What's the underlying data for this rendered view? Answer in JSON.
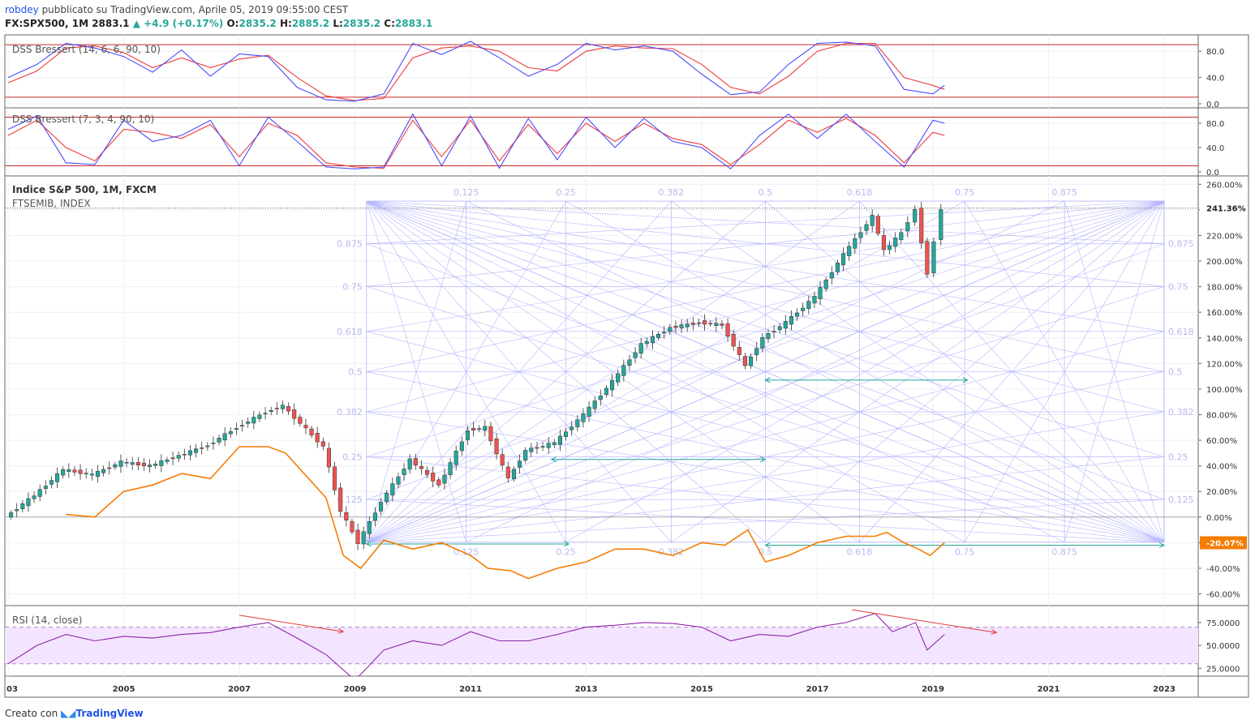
{
  "header": {
    "user": "robdey",
    "published": "pubblicato su TradingView.com, Aprile 05, 2019 09:55:00 CEST",
    "symbol": "FX:SPX500, 1M",
    "last": "2883.1",
    "change": "+4.9 (+0.17%)",
    "o_label": "O:",
    "o": "2835.2",
    "h_label": "H:",
    "h": "2885.2",
    "l_label": "L:",
    "l": "2835.2",
    "c_label": "C:",
    "c": "2883.1"
  },
  "footer": {
    "created": "Creato con",
    "brand": "TradingView"
  },
  "colors": {
    "up": "#26a69a",
    "down": "#ef5350",
    "compare": "#f57c00",
    "dss_fast": "#4b4bff",
    "dss_slow": "#ef3b3b",
    "rsi": "#8e24aa",
    "fib": "#7b7bff",
    "arrow": "#26a69a"
  },
  "chart_data": [
    {
      "type": "line",
      "title": "DSS Bressert (14, 6, 6, 90, 10)",
      "y_ticks": [
        "80.0",
        "40.0",
        "0.0"
      ],
      "levels": [
        90,
        10
      ],
      "ylim": [
        0,
        100
      ],
      "x": [
        2003.0,
        2003.5,
        2004.0,
        2004.5,
        2005.0,
        2005.5,
        2006.0,
        2006.5,
        2007.0,
        2007.5,
        2008.0,
        2008.5,
        2009.0,
        2009.5,
        2010.0,
        2010.5,
        2011.0,
        2011.5,
        2012.0,
        2012.5,
        2013.0,
        2013.5,
        2014.0,
        2014.5,
        2015.0,
        2015.5,
        2016.0,
        2016.5,
        2017.0,
        2017.5,
        2018.0,
        2018.5,
        2019.0,
        2019.2
      ],
      "series": [
        {
          "values": [
            40,
            60,
            92,
            85,
            72,
            48,
            82,
            42,
            76,
            72,
            25,
            6,
            4,
            15,
            92,
            75,
            95,
            70,
            42,
            60,
            92,
            82,
            88,
            80,
            45,
            14,
            18,
            60,
            92,
            94,
            88,
            22,
            15,
            28
          ]
        },
        {
          "values": [
            32,
            50,
            85,
            88,
            78,
            55,
            70,
            55,
            68,
            74,
            40,
            12,
            5,
            8,
            70,
            85,
            88,
            80,
            55,
            50,
            80,
            88,
            85,
            84,
            60,
            25,
            15,
            42,
            80,
            92,
            92,
            40,
            28,
            22
          ]
        }
      ]
    },
    {
      "type": "line",
      "title": "DSS Bressert (7, 3, 4, 90, 10)",
      "y_ticks": [
        "80.0",
        "40.0",
        "0.0"
      ],
      "levels": [
        90,
        10
      ],
      "ylim": [
        0,
        100
      ],
      "x": [
        2003.0,
        2003.5,
        2004.0,
        2004.5,
        2005.0,
        2005.5,
        2006.0,
        2006.5,
        2007.0,
        2007.5,
        2008.0,
        2008.5,
        2009.0,
        2009.5,
        2010.0,
        2010.5,
        2011.0,
        2011.5,
        2012.0,
        2012.5,
        2013.0,
        2013.5,
        2014.0,
        2014.5,
        2015.0,
        2015.5,
        2016.0,
        2016.5,
        2017.0,
        2017.5,
        2018.0,
        2018.5,
        2019.0,
        2019.2
      ],
      "series": [
        {
          "values": [
            70,
            92,
            15,
            12,
            85,
            50,
            60,
            85,
            10,
            90,
            50,
            8,
            5,
            8,
            95,
            10,
            92,
            6,
            88,
            20,
            90,
            40,
            88,
            50,
            40,
            5,
            60,
            95,
            55,
            95,
            50,
            8,
            85,
            80
          ]
        },
        {
          "values": [
            60,
            85,
            40,
            18,
            70,
            65,
            55,
            78,
            25,
            80,
            60,
            15,
            8,
            6,
            85,
            25,
            85,
            18,
            78,
            30,
            80,
            50,
            80,
            55,
            45,
            12,
            45,
            85,
            65,
            88,
            60,
            15,
            65,
            60
          ]
        }
      ]
    },
    {
      "type": "candlestick",
      "title": "Indice S&P 500, 1M, FXCM",
      "compare_label": "FTSEMIB, INDEX",
      "price_tag": "241.36%",
      "compare_tag": "-20.07%",
      "y_ticks": [
        "260.00%",
        "240.00%",
        "220.00%",
        "200.00%",
        "180.00%",
        "160.00%",
        "140.00%",
        "120.00%",
        "100.00%",
        "80.00%",
        "60.00%",
        "40.00%",
        "20.00%",
        "0.00%",
        "-20.00%",
        "-40.00%",
        "-60.00%"
      ],
      "ylim": [
        -66,
        264
      ],
      "x": [
        2003.0,
        2003.5,
        2004.0,
        2004.5,
        2005.0,
        2005.5,
        2006.0,
        2006.5,
        2007.0,
        2007.5,
        2007.8,
        2008.5,
        2008.8,
        2009.1,
        2009.5,
        2010.0,
        2010.5,
        2011.0,
        2011.3,
        2011.7,
        2012.0,
        2012.5,
        2013.0,
        2013.5,
        2014.0,
        2014.5,
        2015.0,
        2015.4,
        2015.8,
        2016.1,
        2016.5,
        2017.0,
        2017.5,
        2018.0,
        2018.2,
        2018.5,
        2018.75,
        2018.95,
        2019.2
      ],
      "series": [
        {
          "name": "S&P 500",
          "values": [
            0,
            17,
            37,
            33,
            43,
            40,
            48,
            56,
            70,
            82,
            87,
            55,
            5,
            -20,
            12,
            45,
            25,
            68,
            70,
            30,
            52,
            58,
            80,
            106,
            135,
            148,
            152,
            150,
            118,
            140,
            152,
            172,
            205,
            235,
            208,
            222,
            240,
            190,
            241
          ]
        },
        {
          "name": "FTSEMIB",
          "values": [
            null,
            null,
            2,
            0,
            20,
            25,
            34,
            30,
            55,
            55,
            50,
            15,
            -30,
            -40,
            -18,
            -25,
            -20,
            -30,
            -40,
            -42,
            -48,
            -40,
            -35,
            -25,
            -25,
            -30,
            -20,
            -22,
            -10,
            -35,
            -30,
            -20,
            -15,
            -15,
            -12,
            -20,
            -25,
            -30,
            -20
          ]
        }
      ],
      "fib_levels": [
        {
          "value": 0.125,
          "label": "0.125"
        },
        {
          "value": 0.25,
          "label": "0.25"
        },
        {
          "value": 0.382,
          "label": "0.382"
        },
        {
          "value": 0.5,
          "label": "0.5"
        },
        {
          "value": 0.618,
          "label": "0.618"
        },
        {
          "value": 0.75,
          "label": "0.75"
        },
        {
          "value": 0.875,
          "label": "0.875"
        }
      ],
      "fan_range": {
        "x": [
          2009.2,
          2023.0
        ],
        "y": [
          -19.6,
          246.8
        ]
      },
      "arrows": [
        {
          "x": [
            2009.2,
            2012.7
          ],
          "y": -21
        },
        {
          "x": [
            2012.4,
            2016.1
          ],
          "y": 45
        },
        {
          "x": [
            2016.1,
            2019.6
          ],
          "y": 107
        },
        {
          "x": [
            2016.1,
            2023.0
          ],
          "y": -22
        }
      ]
    },
    {
      "type": "line",
      "title": "RSI (14, close)",
      "y_ticks": [
        "75.0000",
        "50.0000",
        "25.0000"
      ],
      "bands": [
        70,
        30
      ],
      "ylim": [
        20,
        90
      ],
      "x": [
        2003.0,
        2003.5,
        2004.0,
        2004.5,
        2005.0,
        2005.5,
        2006.0,
        2006.5,
        2007.0,
        2007.5,
        2008.0,
        2008.5,
        2009.0,
        2009.2,
        2009.5,
        2010.0,
        2010.5,
        2011.0,
        2011.5,
        2012.0,
        2012.5,
        2013.0,
        2013.5,
        2014.0,
        2014.5,
        2015.0,
        2015.5,
        2016.0,
        2016.5,
        2017.0,
        2017.5,
        2018.0,
        2018.3,
        2018.7,
        2018.9,
        2019.2
      ],
      "series": [
        {
          "name": "RSI",
          "values": [
            30,
            50,
            62,
            55,
            60,
            58,
            62,
            64,
            70,
            75,
            58,
            40,
            12,
            25,
            45,
            55,
            50,
            65,
            55,
            55,
            62,
            70,
            72,
            75,
            74,
            70,
            55,
            62,
            60,
            70,
            75,
            85,
            65,
            75,
            45,
            62
          ]
        }
      ],
      "divergence_lines": [
        {
          "x": [
            2007.0,
            2008.8
          ],
          "y": [
            83,
            65
          ]
        },
        {
          "x": [
            2017.6,
            2020.1
          ],
          "y": [
            89,
            64
          ]
        }
      ]
    }
  ],
  "x_ticks": [
    "03",
    "2005",
    "2007",
    "2009",
    "2011",
    "2013",
    "2015",
    "2017",
    "2019",
    "2021",
    "2023"
  ]
}
